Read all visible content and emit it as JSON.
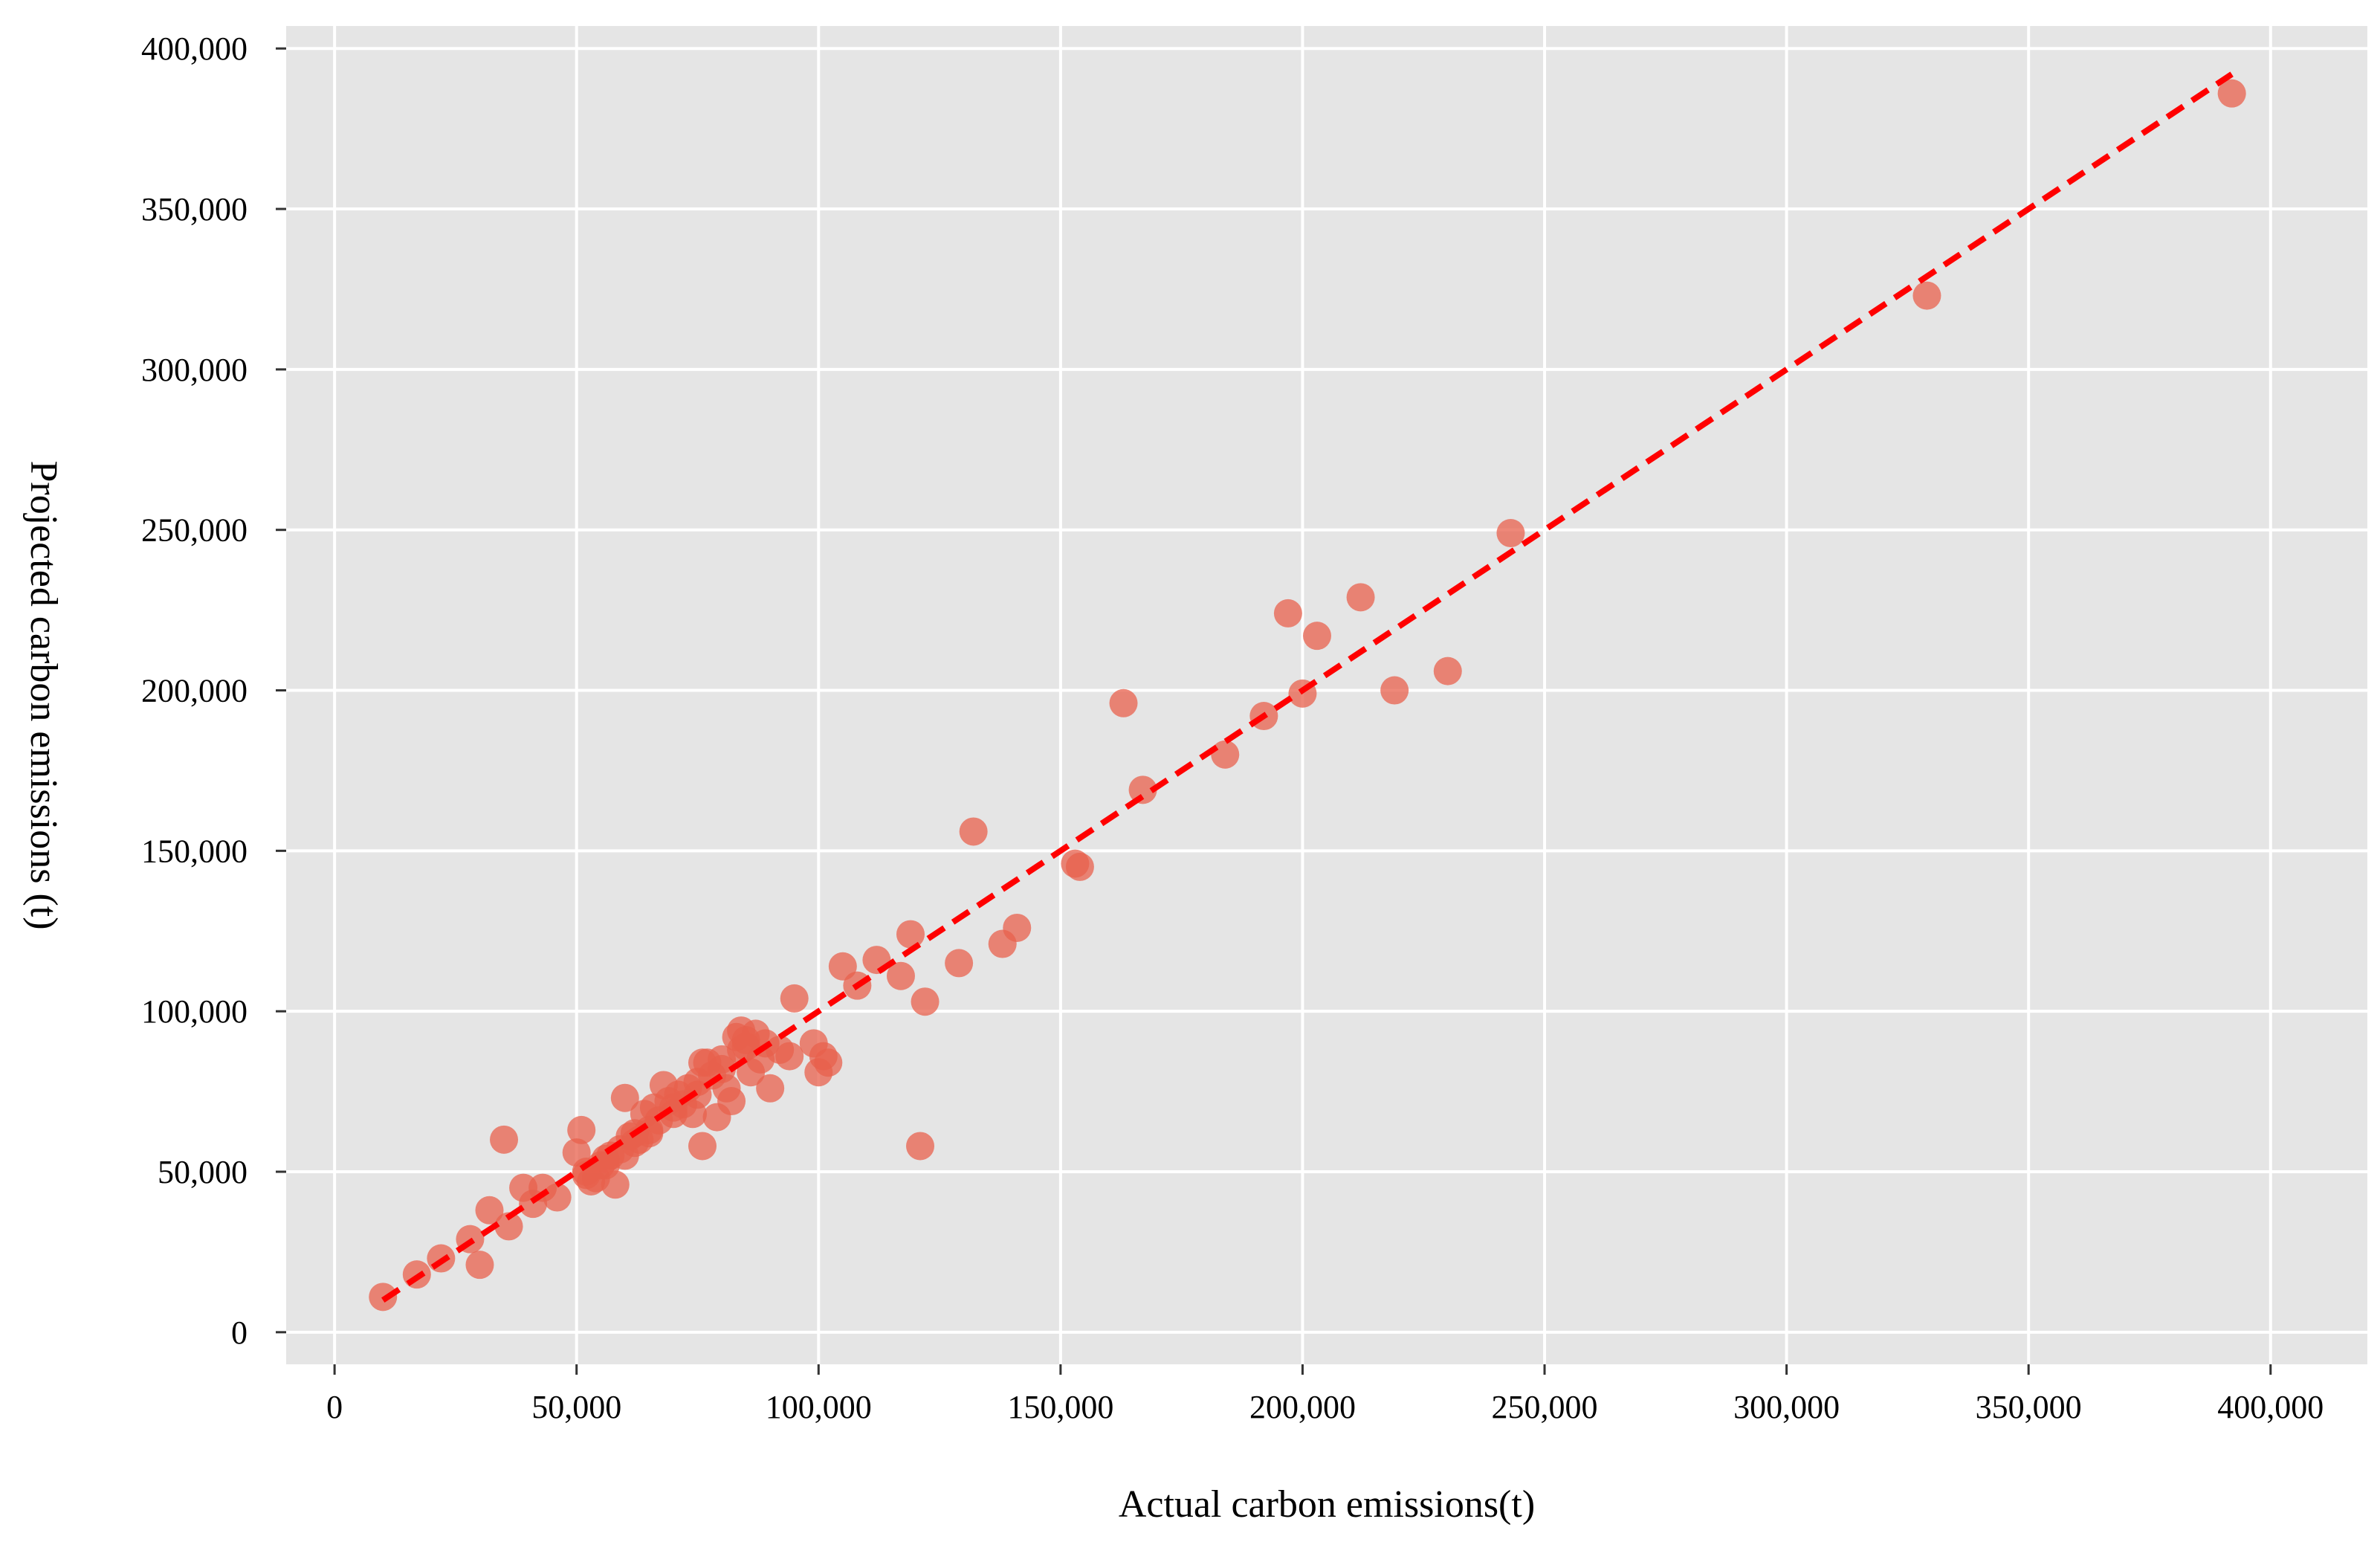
{
  "chart_data": {
    "type": "scatter",
    "title": "",
    "xlabel": "Actual carbon emissions(t)",
    "ylabel": "Projected carbon emissions (t)",
    "xlim": [
      -10000,
      420000
    ],
    "ylim": [
      -10000,
      407000
    ],
    "x_ticks": [
      0,
      50000,
      100000,
      150000,
      200000,
      250000,
      300000,
      350000,
      400000
    ],
    "x_tick_labels": [
      "0",
      "50,000",
      "100,000",
      "150,000",
      "200,000",
      "250,000",
      "300,000",
      "350,000",
      "400,000"
    ],
    "y_ticks": [
      0,
      50000,
      100000,
      150000,
      200000,
      250000,
      300000,
      350000,
      400000
    ],
    "y_tick_labels": [
      "0",
      "50,000",
      "100,000",
      "150,000",
      "200,000",
      "250,000",
      "300,000",
      "350,000",
      "400,000"
    ],
    "grid": true,
    "legend": "none",
    "colors": {
      "panel": "#e5e5e5",
      "grid": "#ffffff",
      "points": "#e8604c",
      "trend_line": "#ff0000"
    },
    "trend_line": {
      "style": "dashed",
      "x": [
        10000,
        392000
      ],
      "y": [
        10000,
        392000
      ]
    },
    "points": {
      "x": [
        10000,
        17000,
        22000,
        28000,
        30000,
        32000,
        35000,
        36000,
        39000,
        41000,
        43000,
        46000,
        50000,
        51000,
        52000,
        53000,
        54000,
        55000,
        56000,
        57000,
        58000,
        59000,
        60000,
        61000,
        62000,
        63000,
        64000,
        65000,
        66000,
        67000,
        68000,
        69000,
        70000,
        71000,
        72000,
        73000,
        74000,
        75000,
        76000,
        77000,
        78000,
        79000,
        80000,
        81000,
        82000,
        83000,
        84000,
        85000,
        86000,
        87000,
        88000,
        89000,
        90000,
        92000,
        94000,
        95000,
        99000,
        100000,
        101000,
        102000,
        105000,
        108000,
        112000,
        117000,
        119000,
        121000,
        122000,
        129000,
        132000,
        138000,
        141000,
        153000,
        154000,
        163000,
        167000,
        184000,
        192000,
        197000,
        200000,
        203000,
        212000,
        219000,
        230000,
        243000,
        329000,
        392000,
        60000,
        65000,
        70000,
        75000,
        80000,
        85000,
        76000,
        84000,
        56000,
        62000,
        52000
      ],
      "y": [
        11000,
        18000,
        23000,
        29000,
        21000,
        38000,
        60000,
        33000,
        45000,
        40000,
        45000,
        42000,
        56000,
        63000,
        50000,
        47000,
        48000,
        52000,
        54000,
        55000,
        46000,
        57000,
        73000,
        61000,
        62000,
        60000,
        68000,
        62000,
        70000,
        66000,
        77000,
        72000,
        68000,
        74000,
        71000,
        76000,
        68000,
        78000,
        58000,
        84000,
        80000,
        67000,
        85000,
        76000,
        72000,
        92000,
        88000,
        91000,
        81000,
        93000,
        85000,
        90000,
        76000,
        88000,
        86000,
        104000,
        90000,
        81000,
        86000,
        84000,
        114000,
        108000,
        116000,
        111000,
        124000,
        58000,
        103000,
        115000,
        156000,
        121000,
        126000,
        146000,
        145000,
        196000,
        169000,
        180000,
        192000,
        224000,
        199000,
        217000,
        229000,
        200000,
        206000,
        249000,
        323000,
        386000,
        55000,
        63000,
        70000,
        74000,
        82000,
        89000,
        84000,
        94000,
        52000,
        59000,
        49000
      ]
    }
  }
}
